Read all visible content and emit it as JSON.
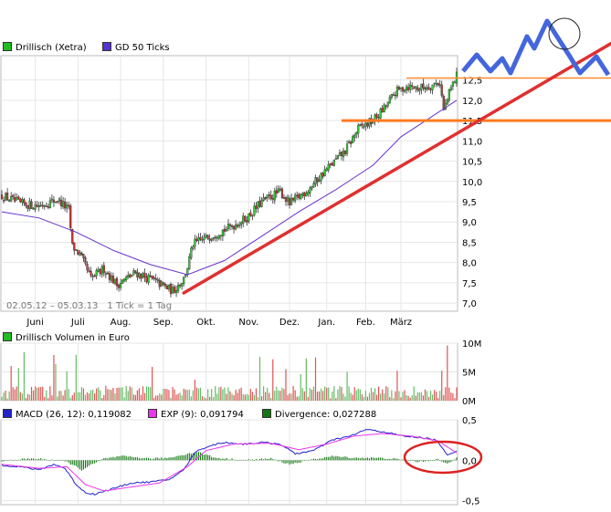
{
  "chart_data": [
    {
      "type": "candlestick",
      "legend": [
        {
          "label": "Drillisch (Xetra)",
          "color": "#22bb22"
        },
        {
          "label": "GD 50 Ticks",
          "color": "#5533cc"
        }
      ],
      "date_range_label": "02.05.12 – 05.03.13",
      "tick_info_label": "1 Tick = 1 Tag",
      "x_tick_labels": [
        "Juni",
        "Juli",
        "Aug.",
        "Sep.",
        "Okt.",
        "Nov.",
        "Dez.",
        "Jan.",
        "Feb.",
        "März"
      ],
      "y_tick_labels": [
        "7,0",
        "7,5",
        "8,0",
        "8,5",
        "9,0",
        "9,5",
        "10,0",
        "10,5",
        "11,0",
        "11,5",
        "12,0",
        "12,5"
      ],
      "ylim": [
        6.8,
        13.1
      ],
      "price_path": [
        [
          0,
          9.65
        ],
        [
          10,
          9.45
        ],
        [
          20,
          9.4
        ],
        [
          30,
          9.55
        ],
        [
          36,
          9.3
        ],
        [
          38,
          8.4
        ],
        [
          42,
          8.2
        ],
        [
          48,
          7.6
        ],
        [
          55,
          7.85
        ],
        [
          62,
          7.45
        ],
        [
          72,
          7.75
        ],
        [
          82,
          7.55
        ],
        [
          92,
          7.3
        ],
        [
          98,
          7.6
        ],
        [
          100,
          7.9
        ],
        [
          103,
          8.45
        ],
        [
          112,
          8.65
        ],
        [
          122,
          8.85
        ],
        [
          132,
          9.1
        ],
        [
          140,
          9.5
        ],
        [
          150,
          9.75
        ],
        [
          155,
          9.45
        ],
        [
          165,
          9.8
        ],
        [
          175,
          10.3
        ],
        [
          185,
          10.75
        ],
        [
          192,
          11.3
        ],
        [
          200,
          11.5
        ],
        [
          206,
          11.8
        ],
        [
          212,
          12.2
        ],
        [
          218,
          12.35
        ],
        [
          225,
          12.3
        ],
        [
          230,
          12.35
        ],
        [
          236,
          12.45
        ],
        [
          238,
          11.75
        ],
        [
          242,
          12.3
        ],
        [
          245,
          12.6
        ]
      ],
      "moving_average_50": [
        [
          0,
          9.25
        ],
        [
          20,
          9.1
        ],
        [
          40,
          8.75
        ],
        [
          60,
          8.3
        ],
        [
          80,
          7.95
        ],
        [
          100,
          7.7
        ],
        [
          120,
          8.05
        ],
        [
          140,
          8.65
        ],
        [
          160,
          9.25
        ],
        [
          180,
          9.8
        ],
        [
          200,
          10.4
        ],
        [
          215,
          11.1
        ],
        [
          230,
          11.55
        ],
        [
          245,
          12.0
        ]
      ],
      "annotations": {
        "trendline": {
          "from": [
            98,
            7.25
          ],
          "to": [
            259,
            13.4
          ],
          "color": "#e03030"
        },
        "support_lines": [
          {
            "value": 12.55,
            "from": 218,
            "color": "#ff8a30"
          },
          {
            "value": 11.5,
            "from": 183,
            "color": "#ff7a20"
          }
        ],
        "projection_color": "#4466dd"
      }
    },
    {
      "type": "bar",
      "legend": [
        {
          "label": "Drillisch Volumen in Euro",
          "color": "#22bb22"
        }
      ],
      "y_tick_labels": [
        "10M",
        "5M",
        "0M"
      ],
      "ylim": [
        0,
        10
      ],
      "unit": "M Euro"
    },
    {
      "type": "line",
      "legend": [
        {
          "label": "MACD (26, 12): 0,119082",
          "color": "#2222cc"
        },
        {
          "label": "EXP (9): 0,091794",
          "color": "#ee33ee"
        },
        {
          "label": "Divergence: 0,027288",
          "color": "#117711"
        }
      ],
      "y_tick_labels": [
        "0,5",
        "0,0",
        "-0,5"
      ],
      "ylim": [
        -0.55,
        0.5
      ],
      "series": [
        {
          "name": "MACD (26, 12)",
          "color": "#2222cc",
          "values": [
            [
              0,
              -0.06
            ],
            [
              10,
              -0.08
            ],
            [
              20,
              -0.12
            ],
            [
              28,
              -0.05
            ],
            [
              34,
              -0.1
            ],
            [
              40,
              -0.3
            ],
            [
              45,
              -0.4
            ],
            [
              50,
              -0.42
            ],
            [
              60,
              -0.35
            ],
            [
              70,
              -0.28
            ],
            [
              80,
              -0.27
            ],
            [
              90,
              -0.24
            ],
            [
              98,
              -0.12
            ],
            [
              104,
              0.1
            ],
            [
              112,
              0.18
            ],
            [
              120,
              0.22
            ],
            [
              130,
              0.2
            ],
            [
              140,
              0.22
            ],
            [
              150,
              0.2
            ],
            [
              158,
              0.08
            ],
            [
              168,
              0.12
            ],
            [
              178,
              0.25
            ],
            [
              188,
              0.3
            ],
            [
              196,
              0.38
            ],
            [
              206,
              0.35
            ],
            [
              216,
              0.3
            ],
            [
              226,
              0.28
            ],
            [
              234,
              0.25
            ],
            [
              240,
              0.06
            ],
            [
              245,
              0.12
            ]
          ]
        },
        {
          "name": "EXP (9)",
          "color": "#ee33ee",
          "values": [
            [
              0,
              -0.05
            ],
            [
              20,
              -0.1
            ],
            [
              35,
              -0.08
            ],
            [
              45,
              -0.3
            ],
            [
              55,
              -0.38
            ],
            [
              70,
              -0.33
            ],
            [
              85,
              -0.28
            ],
            [
              100,
              -0.08
            ],
            [
              110,
              0.12
            ],
            [
              125,
              0.2
            ],
            [
              145,
              0.21
            ],
            [
              160,
              0.13
            ],
            [
              175,
              0.2
            ],
            [
              190,
              0.3
            ],
            [
              205,
              0.33
            ],
            [
              220,
              0.3
            ],
            [
              235,
              0.24
            ],
            [
              245,
              0.09
            ]
          ]
        }
      ],
      "divergence_points": [
        [
          0,
          -0.01
        ],
        [
          15,
          0.02
        ],
        [
          25,
          0.01
        ],
        [
          35,
          -0.02
        ],
        [
          40,
          -0.08
        ],
        [
          43,
          -0.12
        ],
        [
          48,
          -0.06
        ],
        [
          55,
          0.02
        ],
        [
          65,
          0.05
        ],
        [
          80,
          0.02
        ],
        [
          90,
          0.03
        ],
        [
          100,
          0.08
        ],
        [
          106,
          0.1
        ],
        [
          115,
          0.03
        ],
        [
          130,
          0.0
        ],
        [
          145,
          0.02
        ],
        [
          155,
          -0.05
        ],
        [
          165,
          0.0
        ],
        [
          178,
          0.05
        ],
        [
          190,
          0.03
        ],
        [
          200,
          0.03
        ],
        [
          210,
          0.02
        ],
        [
          225,
          -0.02
        ],
        [
          235,
          0.01
        ],
        [
          240,
          -0.05
        ],
        [
          245,
          0.03
        ]
      ]
    }
  ]
}
